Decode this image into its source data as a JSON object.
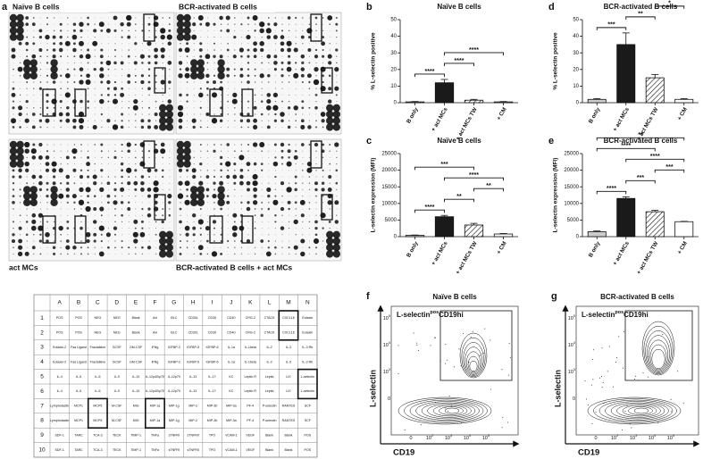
{
  "panel_a": {
    "letter": "a",
    "blots": [
      {
        "label": "Naïve B cells"
      },
      {
        "label": "BCR-activated B cells"
      },
      {
        "label": "act MCs"
      },
      {
        "label": "BCR-activated B cells + act MCs"
      }
    ]
  },
  "table": {
    "columns": [
      "A",
      "B",
      "C",
      "D",
      "E",
      "F",
      "G",
      "H",
      "I",
      "J",
      "K",
      "L",
      "M",
      "N"
    ],
    "rows": [
      {
        "label": "1",
        "cells": [
          "POS",
          "POS",
          "NEG",
          "NEG",
          "Blank",
          "Axl",
          "BLC",
          "CD30L",
          "CD30",
          "CD40",
          "CRG-2",
          "CTACK",
          "CXCL16",
          "Eotaxin"
        ]
      },
      {
        "label": "2",
        "cells": [
          "POS",
          "POS",
          "NEG",
          "NEG",
          "Blank",
          "Axl",
          "BLC",
          "CD30L",
          "CD30",
          "CD40",
          "CRG-2",
          "CTACK",
          "CXCL16",
          "Eotaxin"
        ]
      },
      {
        "label": "3",
        "cells": [
          "Eotaxin-2",
          "Fas Ligand",
          "Fractalkine",
          "GCSF",
          "GM-CSF",
          "IFNg",
          "IGFBP-3",
          "IGFBP-5",
          "IGFBP-6",
          "IL-1a",
          "IL-1beta",
          "IL-2",
          "IL-3",
          "IL-3 Rb"
        ]
      },
      {
        "label": "4",
        "cells": [
          "Eotaxin-2",
          "Fas Ligand",
          "Fractalkine",
          "GCSF",
          "GM-CSF",
          "IFNg",
          "IGFBP-3",
          "IGFBP-5",
          "IGFBP-6",
          "IL-1a",
          "IL-1beta",
          "IL-2",
          "IL-3",
          "IL-3 Rb"
        ]
      },
      {
        "label": "5",
        "cells": [
          "IL-4",
          "IL-5",
          "IL-6",
          "IL-9",
          "IL-10",
          "IL-12p40/p70",
          "IL-12p70",
          "IL-13",
          "IL-17",
          "KC",
          "Leptin R",
          "Leptin",
          "LIX",
          "L-selectin"
        ]
      },
      {
        "label": "6",
        "cells": [
          "IL-4",
          "IL-5",
          "IL-6",
          "IL-9",
          "IL-10",
          "IL-12p40/p70",
          "IL-12p70",
          "IL-13",
          "IL-17",
          "KC",
          "Leptin R",
          "Leptin",
          "LIX",
          "L-selectin"
        ]
      },
      {
        "label": "7",
        "cells": [
          "Lymphotactin",
          "MCP1",
          "MCP5",
          "M-CSF",
          "MIG",
          "MIP-1a",
          "MIP-1g",
          "MIP-2",
          "MIP-3b",
          "MIP-3a",
          "PF-4",
          "P-selectin",
          "RANTES",
          "SCF"
        ]
      },
      {
        "label": "8",
        "cells": [
          "Lymphotactin",
          "MCP1",
          "MCP5",
          "M-CSF",
          "MIG",
          "MIP-1a",
          "MIP-1g",
          "MIP-2",
          "MIP-3b",
          "MIP-3a",
          "PF-4",
          "P-selectin",
          "RANTES",
          "SCF"
        ]
      },
      {
        "label": "9",
        "cells": [
          "SDF-1",
          "TARC",
          "TCA-3",
          "TECK",
          "TIMP-1",
          "TNFa",
          "sTNFRI",
          "sTNFRII",
          "TPO",
          "VCAM-1",
          "VEGF",
          "Blank",
          "Blank",
          "POS"
        ]
      },
      {
        "label": "10",
        "cells": [
          "SDF-1",
          "TARC",
          "TCA-3",
          "TECK",
          "TIMP-1",
          "TNFa",
          "sTNFRI",
          "sTNFRII",
          "TPO",
          "VCAM-1",
          "VEGF",
          "Blank",
          "Blank",
          "POS"
        ]
      }
    ]
  },
  "charts": [
    {
      "type": "bar",
      "letter": "b",
      "title": "Naïve B cells",
      "ylabel": "% L-selectin positive",
      "categories": [
        "B only",
        "+ act MCs",
        "+ act MCs TW",
        "+ CM"
      ],
      "values": [
        0.5,
        12,
        1.5,
        0.5
      ],
      "errors": [
        0.2,
        2,
        0.5,
        0.2
      ],
      "colors": [
        "#cccccc",
        "#1a1a1a",
        "#ffffff",
        "#ffffff"
      ],
      "hatched": [
        false,
        false,
        true,
        false
      ],
      "ylim": [
        0,
        50
      ],
      "yticks": [
        0,
        10,
        20,
        30,
        40,
        50
      ],
      "annotations": [
        {
          "from": "B only",
          "to": "+ act MCs",
          "label": "****"
        },
        {
          "from": "+ act MCs",
          "to": "+ act MCs TW",
          "label": "****"
        },
        {
          "from": "+ act MCs",
          "to": "+ CM",
          "label": "****"
        }
      ]
    },
    {
      "type": "bar",
      "letter": "c",
      "title": "Naïve B cells",
      "ylabel": "L-selectin expression (MFI)",
      "categories": [
        "B only",
        "+ act MCs",
        "+ act MCs TW",
        "+ CM"
      ],
      "values": [
        400,
        6000,
        3500,
        800
      ],
      "errors": [
        100,
        400,
        500,
        150
      ],
      "colors": [
        "#cccccc",
        "#1a1a1a",
        "#ffffff",
        "#ffffff"
      ],
      "hatched": [
        false,
        false,
        true,
        false
      ],
      "ylim": [
        0,
        25000
      ],
      "yticks": [
        0,
        5000,
        10000,
        15000,
        20000,
        25000
      ],
      "annotations": [
        {
          "from": "B only",
          "to": "+ act MCs",
          "label": "****"
        },
        {
          "from": "+ act MCs",
          "to": "+ act MCs TW",
          "label": "**"
        },
        {
          "from": "+ act MCs TW",
          "to": "+ CM",
          "label": "**"
        },
        {
          "from": "+ act MCs",
          "to": "+ CM",
          "label": "****"
        },
        {
          "from": "B only",
          "to": "+ act MCs TW",
          "label": "***"
        }
      ]
    },
    {
      "type": "bar",
      "letter": "d",
      "title": "BCR-activated B cells",
      "ylabel": "% L-selectin positive",
      "categories": [
        "B only",
        "+ act MCs",
        "+ act MCs TW",
        "+ CM"
      ],
      "values": [
        2,
        35,
        15,
        2
      ],
      "errors": [
        0.5,
        7,
        2,
        0.5
      ],
      "colors": [
        "#cccccc",
        "#1a1a1a",
        "#ffffff",
        "#ffffff"
      ],
      "hatched": [
        false,
        false,
        true,
        false
      ],
      "ylim": [
        0,
        50
      ],
      "yticks": [
        0,
        10,
        20,
        30,
        40,
        50
      ],
      "annotations": [
        {
          "from": "B only",
          "to": "+ act MCs",
          "label": "***"
        },
        {
          "from": "+ act MCs",
          "to": "+ act MCs TW",
          "label": "**"
        },
        {
          "from": "+ act MCs TW",
          "to": "+ CM",
          "label": "*"
        },
        {
          "from": "+ act MCs",
          "to": "+ CM",
          "label": "***"
        },
        {
          "from": "B only",
          "to": "+ act MCs TW",
          "label": "*"
        }
      ]
    },
    {
      "type": "bar",
      "letter": "e",
      "title": "BCR-activated B cells",
      "ylabel": "L-selectin expression (MFI)",
      "categories": [
        "B only",
        "+ act MCs",
        "+ act MCs TW",
        "+ CM"
      ],
      "values": [
        1500,
        11500,
        7500,
        4500
      ],
      "errors": [
        200,
        500,
        400,
        100
      ],
      "colors": [
        "#cccccc",
        "#1a1a1a",
        "#ffffff",
        "#ffffff"
      ],
      "hatched": [
        false,
        false,
        true,
        false
      ],
      "ylim": [
        0,
        25000
      ],
      "yticks": [
        0,
        5000,
        10000,
        15000,
        20000,
        25000
      ],
      "annotations": [
        {
          "from": "B only",
          "to": "+ act MCs",
          "label": "****"
        },
        {
          "from": "+ act MCs",
          "to": "+ act MCs TW",
          "label": "***"
        },
        {
          "from": "+ act MCs TW",
          "to": "+ CM",
          "label": "***"
        },
        {
          "from": "+ act MCs",
          "to": "+ CM",
          "label": "****"
        },
        {
          "from": "B only",
          "to": "+ act MCs TW",
          "label": "****"
        },
        {
          "from": "B only",
          "to": "+ CM",
          "label": "**"
        }
      ]
    }
  ],
  "flow": [
    {
      "letter": "f",
      "title": "Naïve B cells",
      "gate": {
        "main": "L-selectin",
        "sup": "pos",
        "tail": "CD19hi"
      },
      "xlabel": "CD19",
      "ylabel": "L-selectin",
      "xticks": [
        {
          "text": "0"
        },
        {
          "text": "10",
          "sup": "2"
        },
        {
          "text": "10",
          "sup": "3"
        },
        {
          "text": "10",
          "sup": "4"
        },
        {
          "text": "10",
          "sup": "5"
        }
      ],
      "yticks": [
        {
          "text": "10",
          "sup": "5"
        },
        {
          "text": "10",
          "sup": "4"
        },
        {
          "text": "10",
          "sup": "3"
        },
        {
          "text": "0"
        }
      ]
    },
    {
      "letter": "g",
      "title": "BCR-activated B cells",
      "gate": {
        "main": "L-selectin",
        "sup": "pos",
        "tail": "CD19hi"
      },
      "xlabel": "CD19",
      "ylabel": "L-selectin",
      "xticks": [
        {
          "text": "0"
        },
        {
          "text": "10",
          "sup": "2"
        },
        {
          "text": "10",
          "sup": "3"
        },
        {
          "text": "10",
          "sup": "4"
        },
        {
          "text": "10",
          "sup": "5"
        }
      ],
      "yticks": [
        {
          "text": "10",
          "sup": "5"
        },
        {
          "text": "10",
          "sup": "4"
        },
        {
          "text": "10",
          "sup": "3"
        },
        {
          "text": "0"
        }
      ]
    }
  ]
}
